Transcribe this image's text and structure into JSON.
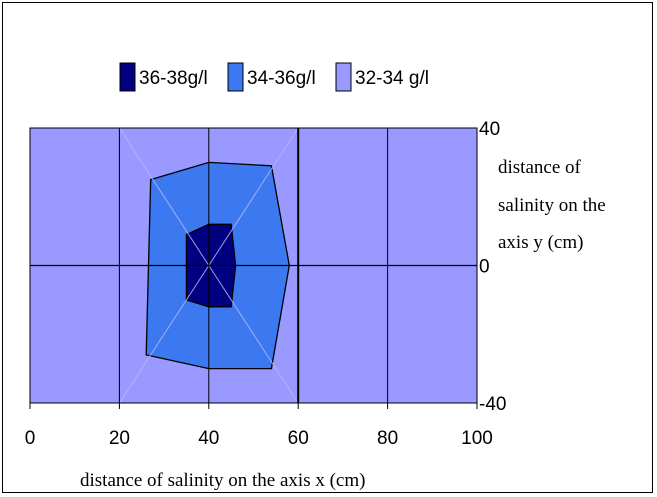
{
  "chart_data": {
    "type": "contour",
    "legend": [
      {
        "label": "36-38g/l",
        "color": "#000080"
      },
      {
        "label": "34-36g/l",
        "color": "#3c78f0"
      },
      {
        "label": "32-34 g/l",
        "color": "#9999ff"
      }
    ],
    "legend_position": "top",
    "x_ticks": [
      "0",
      "20",
      "40",
      "60",
      "80",
      "100"
    ],
    "y_ticks": [
      "40",
      "0",
      "-40"
    ],
    "xlim": [
      0,
      100
    ],
    "ylim": [
      -40,
      40
    ],
    "grid": true,
    "xlabel": "distance of salinity on the axis x (cm)",
    "ylabel_lines": [
      "distance of",
      "salinity on the",
      "axis y (cm)"
    ],
    "regions": [
      {
        "range": "32-34 g/l",
        "polygon": [
          [
            0,
            -40
          ],
          [
            100,
            -40
          ],
          [
            100,
            40
          ],
          [
            0,
            40
          ]
        ]
      },
      {
        "range": "34-36g/l",
        "polygon": [
          [
            27,
            25
          ],
          [
            40,
            30
          ],
          [
            54,
            29
          ],
          [
            58,
            0
          ],
          [
            54,
            -30
          ],
          [
            40,
            -30
          ],
          [
            26,
            -26
          ]
        ]
      },
      {
        "range": "36-38g/l",
        "polygon": [
          [
            35,
            9
          ],
          [
            40,
            12
          ],
          [
            45,
            12
          ],
          [
            46,
            0
          ],
          [
            45,
            -12
          ],
          [
            40,
            -12
          ],
          [
            35,
            -10
          ]
        ]
      }
    ]
  }
}
